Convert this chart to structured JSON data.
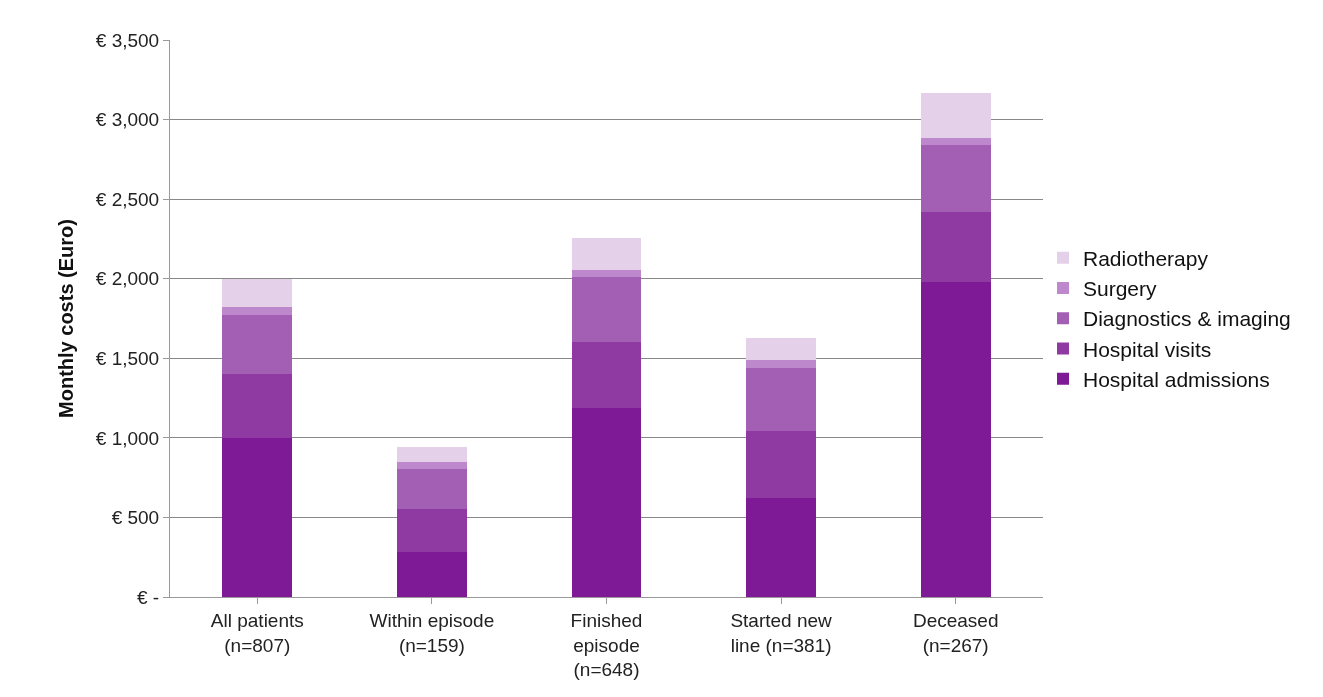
{
  "chart_data": {
    "type": "bar",
    "stacked": true,
    "ylabel": "Monthly costs (Euro)",
    "categories": [
      "All patients (n=807)",
      "Within episode (n=159)",
      "Finished episode (n=648)",
      "Started new line (n=381)",
      "Deceased (n=267)"
    ],
    "series": [
      {
        "name": "Hospital admissions",
        "color": "#7f1a96",
        "values": [
          1000,
          280,
          1185,
          625,
          1980
        ]
      },
      {
        "name": "Hospital visits",
        "color": "#8f3aa3",
        "values": [
          400,
          270,
          420,
          420,
          440
        ]
      },
      {
        "name": "Diagnostics & imaging",
        "color": "#a35fb4",
        "values": [
          375,
          255,
          405,
          395,
          420
        ]
      },
      {
        "name": "Surgery",
        "color": "#be88cc",
        "values": [
          45,
          45,
          45,
          50,
          45
        ]
      },
      {
        "name": "Radiotherapy",
        "color": "#e4d0e8",
        "values": [
          180,
          95,
          200,
          135,
          280
        ]
      }
    ],
    "ylim": [
      0,
      3500
    ],
    "yticks": [
      {
        "value": 0,
        "label": "€ -"
      },
      {
        "value": 500,
        "label": "€ 500"
      },
      {
        "value": 1000,
        "label": "€ 1,000"
      },
      {
        "value": 1500,
        "label": "€ 1,500"
      },
      {
        "value": 2000,
        "label": "€ 2,000"
      },
      {
        "value": 2500,
        "label": "€ 2,500"
      },
      {
        "value": 3000,
        "label": "€ 3,000"
      },
      {
        "value": 3500,
        "label": "€ 3,500"
      }
    ],
    "grid": "y",
    "legend": "right"
  }
}
